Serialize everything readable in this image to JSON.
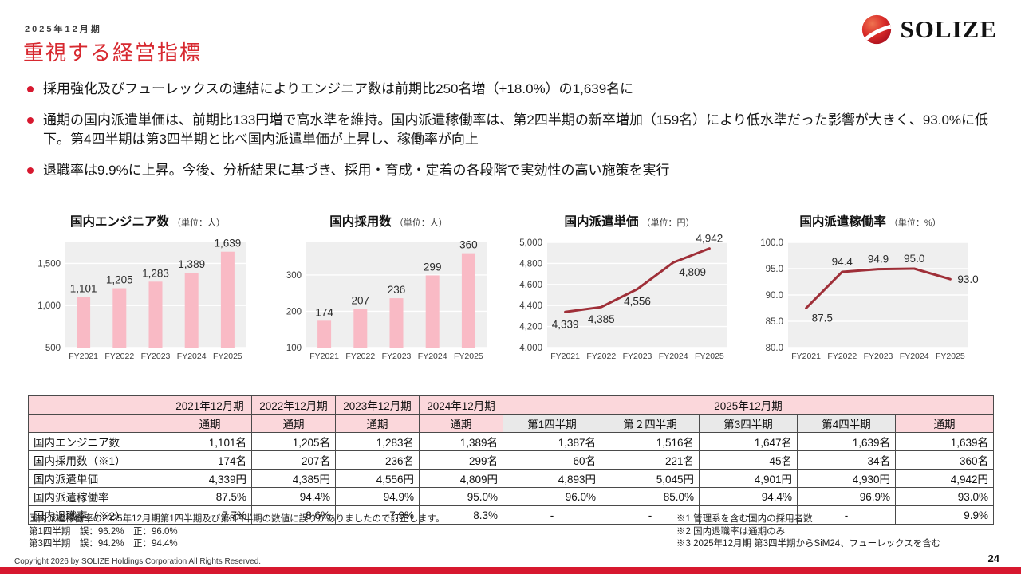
{
  "header": {
    "period_label": "2025年12月期",
    "title": "重視する経営指標",
    "logo_text": "SOLIZE"
  },
  "bullets": [
    "採用強化及びフューレックスの連結によりエンジニア数は前期比250名増（+18.0%）の1,639名に",
    "通期の国内派遣単価は、前期比133円増で高水準を維持。国内派遣稼働率は、第2四半期の新卒増加（159名）により低水準だった影響が大きく、93.0%に低下。第4四半期は第3四半期と比べ国内派遣単価が上昇し、稼働率が向上",
    "退職率は9.9%に上昇。今後、分析結果に基づき、採用・育成・定着の各段階で実効性の高い施策を実行"
  ],
  "chart_data": [
    {
      "type": "bar",
      "title": "国内エンジニア数",
      "unit": "（単位：人）",
      "categories": [
        "FY2021",
        "FY2022",
        "FY2023",
        "FY2024",
        "FY2025"
      ],
      "values": [
        1101,
        1205,
        1283,
        1389,
        1639
      ],
      "value_labels": [
        "1,101",
        "1,205",
        "1,283",
        "1,389",
        "1,639"
      ],
      "ylim": [
        500,
        1750
      ],
      "yticks": [
        500,
        1000,
        1500
      ],
      "ytick_labels": [
        "500",
        "1,000",
        "1,500"
      ],
      "grid": true,
      "legend": "none"
    },
    {
      "type": "bar",
      "title": "国内採用数",
      "unit": "（単位：人）",
      "categories": [
        "FY2021",
        "FY2022",
        "FY2023",
        "FY2024",
        "FY2025"
      ],
      "values": [
        174,
        207,
        236,
        299,
        360
      ],
      "value_labels": [
        "174",
        "207",
        "236",
        "299",
        "360"
      ],
      "ylim": [
        100,
        390
      ],
      "yticks": [
        100,
        200,
        300
      ],
      "ytick_labels": [
        "100",
        "200",
        "300"
      ],
      "grid": true,
      "legend": "none"
    },
    {
      "type": "line",
      "title": "国内派遣単価",
      "unit": "（単位：円）",
      "categories": [
        "FY2021",
        "FY2022",
        "FY2023",
        "FY2024",
        "FY2025"
      ],
      "values": [
        4339,
        4385,
        4556,
        4809,
        4942
      ],
      "value_labels": [
        "4,339",
        "4,385",
        "4,556",
        "4,809",
        "4,942"
      ],
      "label_pos": [
        "below",
        "below",
        "below",
        "right-below",
        "above"
      ],
      "ylim": [
        4000,
        5000
      ],
      "yticks": [
        4000,
        4200,
        4400,
        4600,
        4800,
        5000
      ],
      "ytick_labels": [
        "4,000",
        "4,200",
        "4,400",
        "4,600",
        "4,800",
        "5,000"
      ],
      "grid": true,
      "legend": "none"
    },
    {
      "type": "line",
      "title": "国内派遣稼働率",
      "unit": "（単位：%）",
      "categories": [
        "FY2021",
        "FY2022",
        "FY2023",
        "FY2024",
        "FY2025"
      ],
      "values": [
        87.5,
        94.4,
        94.9,
        95.0,
        93.0
      ],
      "value_labels": [
        "87.5",
        "94.4",
        "94.9",
        "95.0",
        "93.0"
      ],
      "label_pos": [
        "right-below",
        "above",
        "above",
        "above",
        "right"
      ],
      "ylim": [
        80,
        100
      ],
      "yticks": [
        80,
        85,
        90,
        95,
        100
      ],
      "ytick_labels": [
        "80.0",
        "85.0",
        "90.0",
        "95.0",
        "100.0"
      ],
      "grid": true,
      "legend": "none"
    }
  ],
  "table": {
    "col_groups": [
      {
        "label": "2021年12月期",
        "span": 1
      },
      {
        "label": "2022年12月期",
        "span": 1
      },
      {
        "label": "2023年12月期",
        "span": 1
      },
      {
        "label": "2024年12月期",
        "span": 1
      },
      {
        "label": "2025年12月期",
        "span": 5
      }
    ],
    "sub_headers": [
      {
        "label": "通期",
        "style": "pink"
      },
      {
        "label": "通期",
        "style": "pink"
      },
      {
        "label": "通期",
        "style": "pink"
      },
      {
        "label": "通期",
        "style": "pink"
      },
      {
        "label": "第1四半期",
        "style": "gray"
      },
      {
        "label": "第２四半期",
        "style": "gray"
      },
      {
        "label": "第3四半期",
        "style": "gray"
      },
      {
        "label": "第4四半期",
        "style": "gray"
      },
      {
        "label": "通期",
        "style": "pink"
      }
    ],
    "rows": [
      {
        "label": "国内エンジニア数",
        "values": [
          "1,101名",
          "1,205名",
          "1,283名",
          "1,389名",
          "1,387名",
          "1,516名",
          "1,647名",
          "1,639名",
          "1,639名"
        ]
      },
      {
        "label": "国内採用数（※1）",
        "values": [
          "174名",
          "207名",
          "236名",
          "299名",
          "60名",
          "221名",
          "45名",
          "34名",
          "360名"
        ]
      },
      {
        "label": "国内派遣単価",
        "values": [
          "4,339円",
          "4,385円",
          "4,556円",
          "4,809円",
          "4,893円",
          "5,045円",
          "4,901円",
          "4,930円",
          "4,942円"
        ]
      },
      {
        "label": "国内派遣稼働率",
        "values": [
          "87.5%",
          "94.4%",
          "94.9%",
          "95.0%",
          "96.0%",
          "85.0%",
          "94.4%",
          "96.9%",
          "93.0%"
        ]
      },
      {
        "label": "国内退職率（※2）",
        "values": [
          "7.7%",
          "8.6%",
          "7.9%",
          "8.3%",
          "-",
          "-",
          "-",
          "-",
          "9.9%"
        ]
      }
    ]
  },
  "footnotes": {
    "correction": [
      "国内派遣稼働率の2025年12月期第1四半期及び第3四半期の数値に誤りがありましたので訂正します。",
      "第1四半期　誤：96.2%　正：96.0%",
      "第3四半期　誤：94.2%　正：94.4%"
    ],
    "notes": [
      "※1 管理系を含む国内の採用者数",
      "※2 国内退職率は通期のみ",
      "※3 2025年12月期 第3四半期からSiM24、フューレックスを含む"
    ]
  },
  "footer": {
    "copyright": "Copyright 2026 by SOLIZE Holdings Corporation All Rights Reserved.",
    "page_number": "24"
  },
  "colors": {
    "accent_red": "#d7282f",
    "footer_bar_red": "#d7182f",
    "bar_pink": "#f9bac5",
    "line_red": "#9f2f38",
    "plot_bg": "#efefef",
    "table_header_pink": "#fbd7db",
    "table_header_gray": "#e9e9e9"
  }
}
